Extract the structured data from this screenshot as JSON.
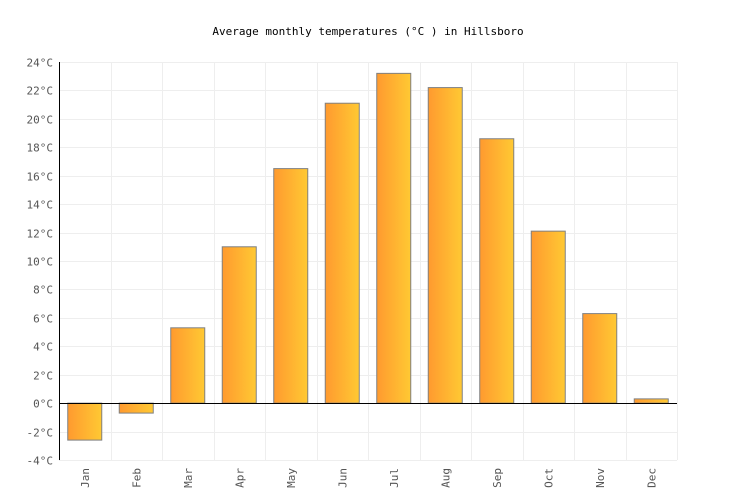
{
  "chart_data": {
    "type": "bar",
    "title": "Average monthly temperatures (°C ) in Hillsboro",
    "xlabel": "",
    "ylabel": "",
    "categories": [
      "Jan",
      "Feb",
      "Mar",
      "Apr",
      "May",
      "Jun",
      "Jul",
      "Aug",
      "Sep",
      "Oct",
      "Nov",
      "Dec"
    ],
    "values": [
      -2.6,
      -0.7,
      5.3,
      11.0,
      16.5,
      21.1,
      23.2,
      22.2,
      18.6,
      12.1,
      6.3,
      0.3
    ],
    "ylim": [
      -4,
      24
    ],
    "yticks": [
      -4,
      -2,
      0,
      2,
      4,
      6,
      8,
      10,
      12,
      14,
      16,
      18,
      20,
      22,
      24
    ],
    "ytick_unit": "°C",
    "grid": true,
    "legend": "none",
    "colors": {
      "bar_start": "#ff9a2f",
      "bar_end": "#ffc933",
      "bar_border": "#808080",
      "grid": "#eeeeee",
      "axis": "#000000",
      "text": "#555555"
    }
  }
}
